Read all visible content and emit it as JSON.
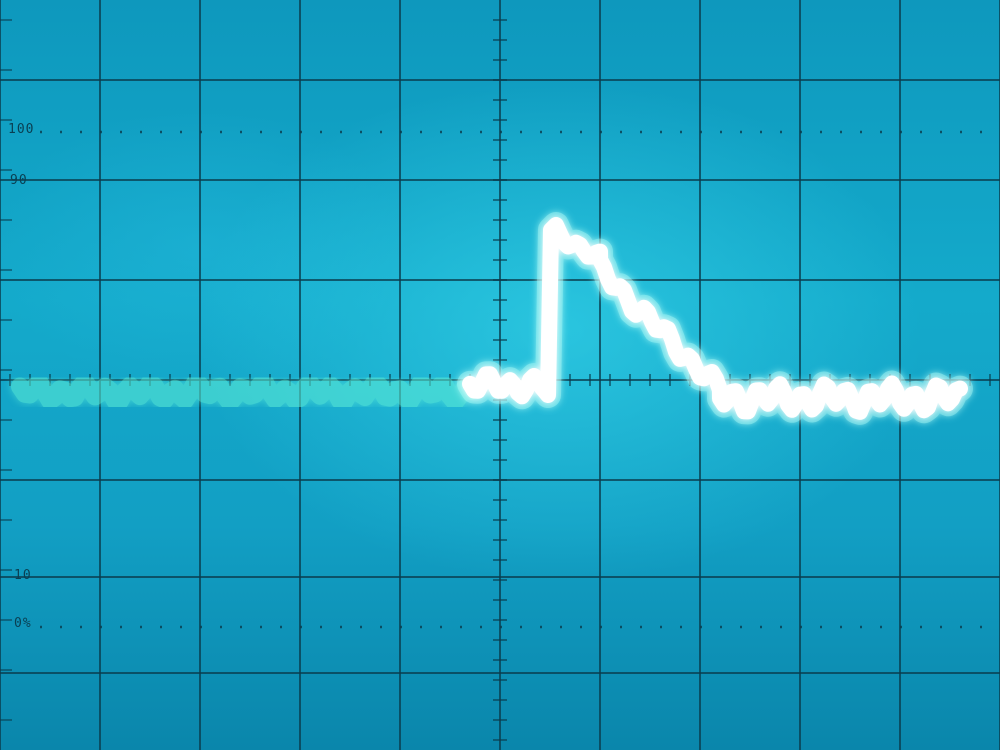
{
  "graticule": {
    "labels": {
      "pct_100": "100",
      "pct_90": "90",
      "pct_10": "10",
      "pct_0": "0%"
    }
  },
  "colors": {
    "screen": "#14aacb",
    "grid": "#0a3b4c",
    "trace_dim": "#5ff0d8",
    "trace_bright": "#ffffff"
  }
}
